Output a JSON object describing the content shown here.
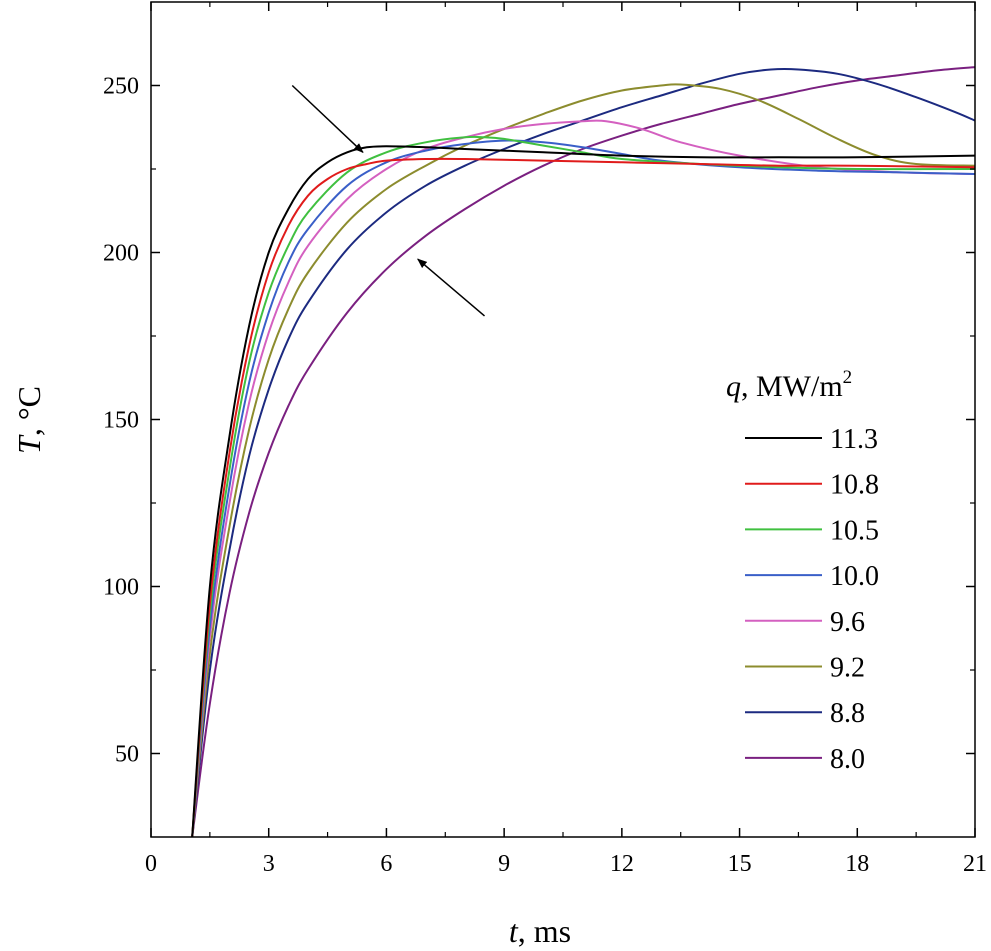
{
  "chart_data": {
    "type": "line",
    "title": "",
    "xlabel": {
      "var": "t",
      "unit": ", ms"
    },
    "ylabel": {
      "var": "T",
      "unit": ", °C"
    },
    "xlim": [
      0,
      21
    ],
    "ylim": [
      25,
      275
    ],
    "xticks": [
      0,
      3,
      6,
      9,
      12,
      15,
      18,
      21
    ],
    "yticks": [
      50,
      100,
      150,
      200,
      250
    ],
    "legend": {
      "title_var": "q",
      "title_unit": ", MW/m",
      "title_sup": "2",
      "position": "right-middle"
    },
    "series": [
      {
        "name": "11.3",
        "color": "#000000",
        "x": [
          1.05,
          1.5,
          2.0,
          2.5,
          3.0,
          3.5,
          4.0,
          4.5,
          5.0,
          5.5,
          6.0,
          7.0,
          8.0,
          10.0,
          12.0,
          14.0,
          16.0,
          18.0,
          21.0
        ],
        "y": [
          25,
          100,
          145,
          178,
          200,
          213,
          222,
          227,
          230,
          231.5,
          231.8,
          231.5,
          231,
          230,
          229,
          228.5,
          228.5,
          228.5,
          229
        ]
      },
      {
        "name": "10.8",
        "color": "#e01b1b",
        "x": [
          1.05,
          1.5,
          2.0,
          2.5,
          3.0,
          3.5,
          4.0,
          4.5,
          5.0,
          5.5,
          6.0,
          7.0,
          8.0,
          10.0,
          12.0,
          14.0,
          16.0,
          18.0,
          21.0
        ],
        "y": [
          25,
          95,
          140,
          172,
          194,
          208,
          217,
          222,
          225,
          226.5,
          227.5,
          228,
          228,
          227.5,
          227,
          226.5,
          226,
          226,
          225.5
        ]
      },
      {
        "name": "10.5",
        "color": "#40c040",
        "x": [
          1.05,
          1.5,
          2.0,
          2.5,
          3.0,
          3.5,
          4.0,
          5.0,
          6.0,
          7.0,
          8.0,
          8.5,
          9.0,
          10.0,
          11.0,
          12.0,
          14.0,
          16.0,
          18.0,
          21.0
        ],
        "y": [
          25,
          92,
          135,
          167,
          188,
          202,
          212,
          224,
          230,
          233,
          234.5,
          234.5,
          234,
          232,
          230,
          228,
          226.5,
          225.5,
          225,
          225
        ]
      },
      {
        "name": "10.0",
        "color": "#3a5fc8",
        "x": [
          1.05,
          1.5,
          2.0,
          2.5,
          3.0,
          3.5,
          4.0,
          5.0,
          6.0,
          7.0,
          8.0,
          9.0,
          10.0,
          11.0,
          12.0,
          13.0,
          15.0,
          17.0,
          19.0,
          21.0
        ],
        "y": [
          25,
          88,
          130,
          161,
          182,
          197,
          207,
          220,
          227,
          230.5,
          232.5,
          233.5,
          233,
          231.5,
          229.5,
          227.5,
          225.5,
          224.5,
          224,
          223.5
        ]
      },
      {
        "name": "9.6",
        "color": "#d460c0",
        "x": [
          1.05,
          1.5,
          2.0,
          2.5,
          3.0,
          3.5,
          4.0,
          5.0,
          6.0,
          7.0,
          8.0,
          9.0,
          10.0,
          11.0,
          11.6,
          12.5,
          13.5,
          15.0,
          17.0,
          19.0,
          21.0
        ],
        "y": [
          25,
          85,
          125,
          155,
          176,
          191,
          202,
          216,
          225,
          231,
          234.5,
          237,
          238.5,
          239.3,
          239.3,
          237,
          233,
          229,
          225.5,
          224,
          223.5
        ]
      },
      {
        "name": "9.2",
        "color": "#8c8c2e",
        "x": [
          1.05,
          1.5,
          2.0,
          2.5,
          3.0,
          3.5,
          4.0,
          5.0,
          6.0,
          7.0,
          8.0,
          9.0,
          10.0,
          11.0,
          12.0,
          13.0,
          13.5,
          14.5,
          15.5,
          16.5,
          17.5,
          18.5,
          19.5,
          21.0
        ],
        "y": [
          25,
          80,
          118,
          147,
          168,
          183,
          194,
          209,
          219,
          226,
          232,
          237,
          241.5,
          245.5,
          248.5,
          250,
          250.3,
          249,
          245.5,
          240,
          234,
          229,
          226.5,
          226
        ]
      },
      {
        "name": "8.8",
        "color": "#1c2a80",
        "x": [
          1.05,
          1.5,
          2.0,
          2.5,
          3.0,
          3.5,
          4.0,
          5.0,
          6.0,
          7.0,
          8.0,
          9.0,
          10.0,
          11.0,
          12.0,
          13.0,
          14.0,
          15.0,
          15.8,
          16.5,
          17.5,
          18.5,
          19.5,
          20.5,
          21.0
        ],
        "y": [
          25,
          75,
          111,
          139,
          159,
          174,
          185,
          201,
          212,
          220,
          226,
          231,
          235.5,
          239.5,
          243.5,
          247,
          250.5,
          253.5,
          254.8,
          254.8,
          253.5,
          250.5,
          246.5,
          242,
          239.5
        ]
      },
      {
        "name": "8.0",
        "color": "#7a2080",
        "x": [
          1.05,
          1.5,
          2.0,
          2.5,
          3.0,
          3.5,
          4.0,
          5.0,
          6.0,
          7.0,
          8.0,
          9.0,
          10.0,
          11.0,
          12.0,
          13.0,
          14.0,
          15.0,
          16.0,
          17.0,
          18.0,
          19.0,
          20.0,
          21.0
        ],
        "y": [
          25,
          65,
          98,
          122,
          140,
          154,
          165,
          182,
          195,
          205,
          213,
          220,
          226,
          231,
          235,
          238.5,
          241.5,
          244.5,
          247,
          249.5,
          251.5,
          253,
          254.5,
          255.5
        ]
      }
    ],
    "annotations": [
      {
        "type": "arrow",
        "from": [
          3.6,
          250
        ],
        "to": [
          5.4,
          230
        ]
      },
      {
        "type": "arrow",
        "from": [
          8.5,
          181
        ],
        "to": [
          6.8,
          198
        ]
      }
    ]
  }
}
